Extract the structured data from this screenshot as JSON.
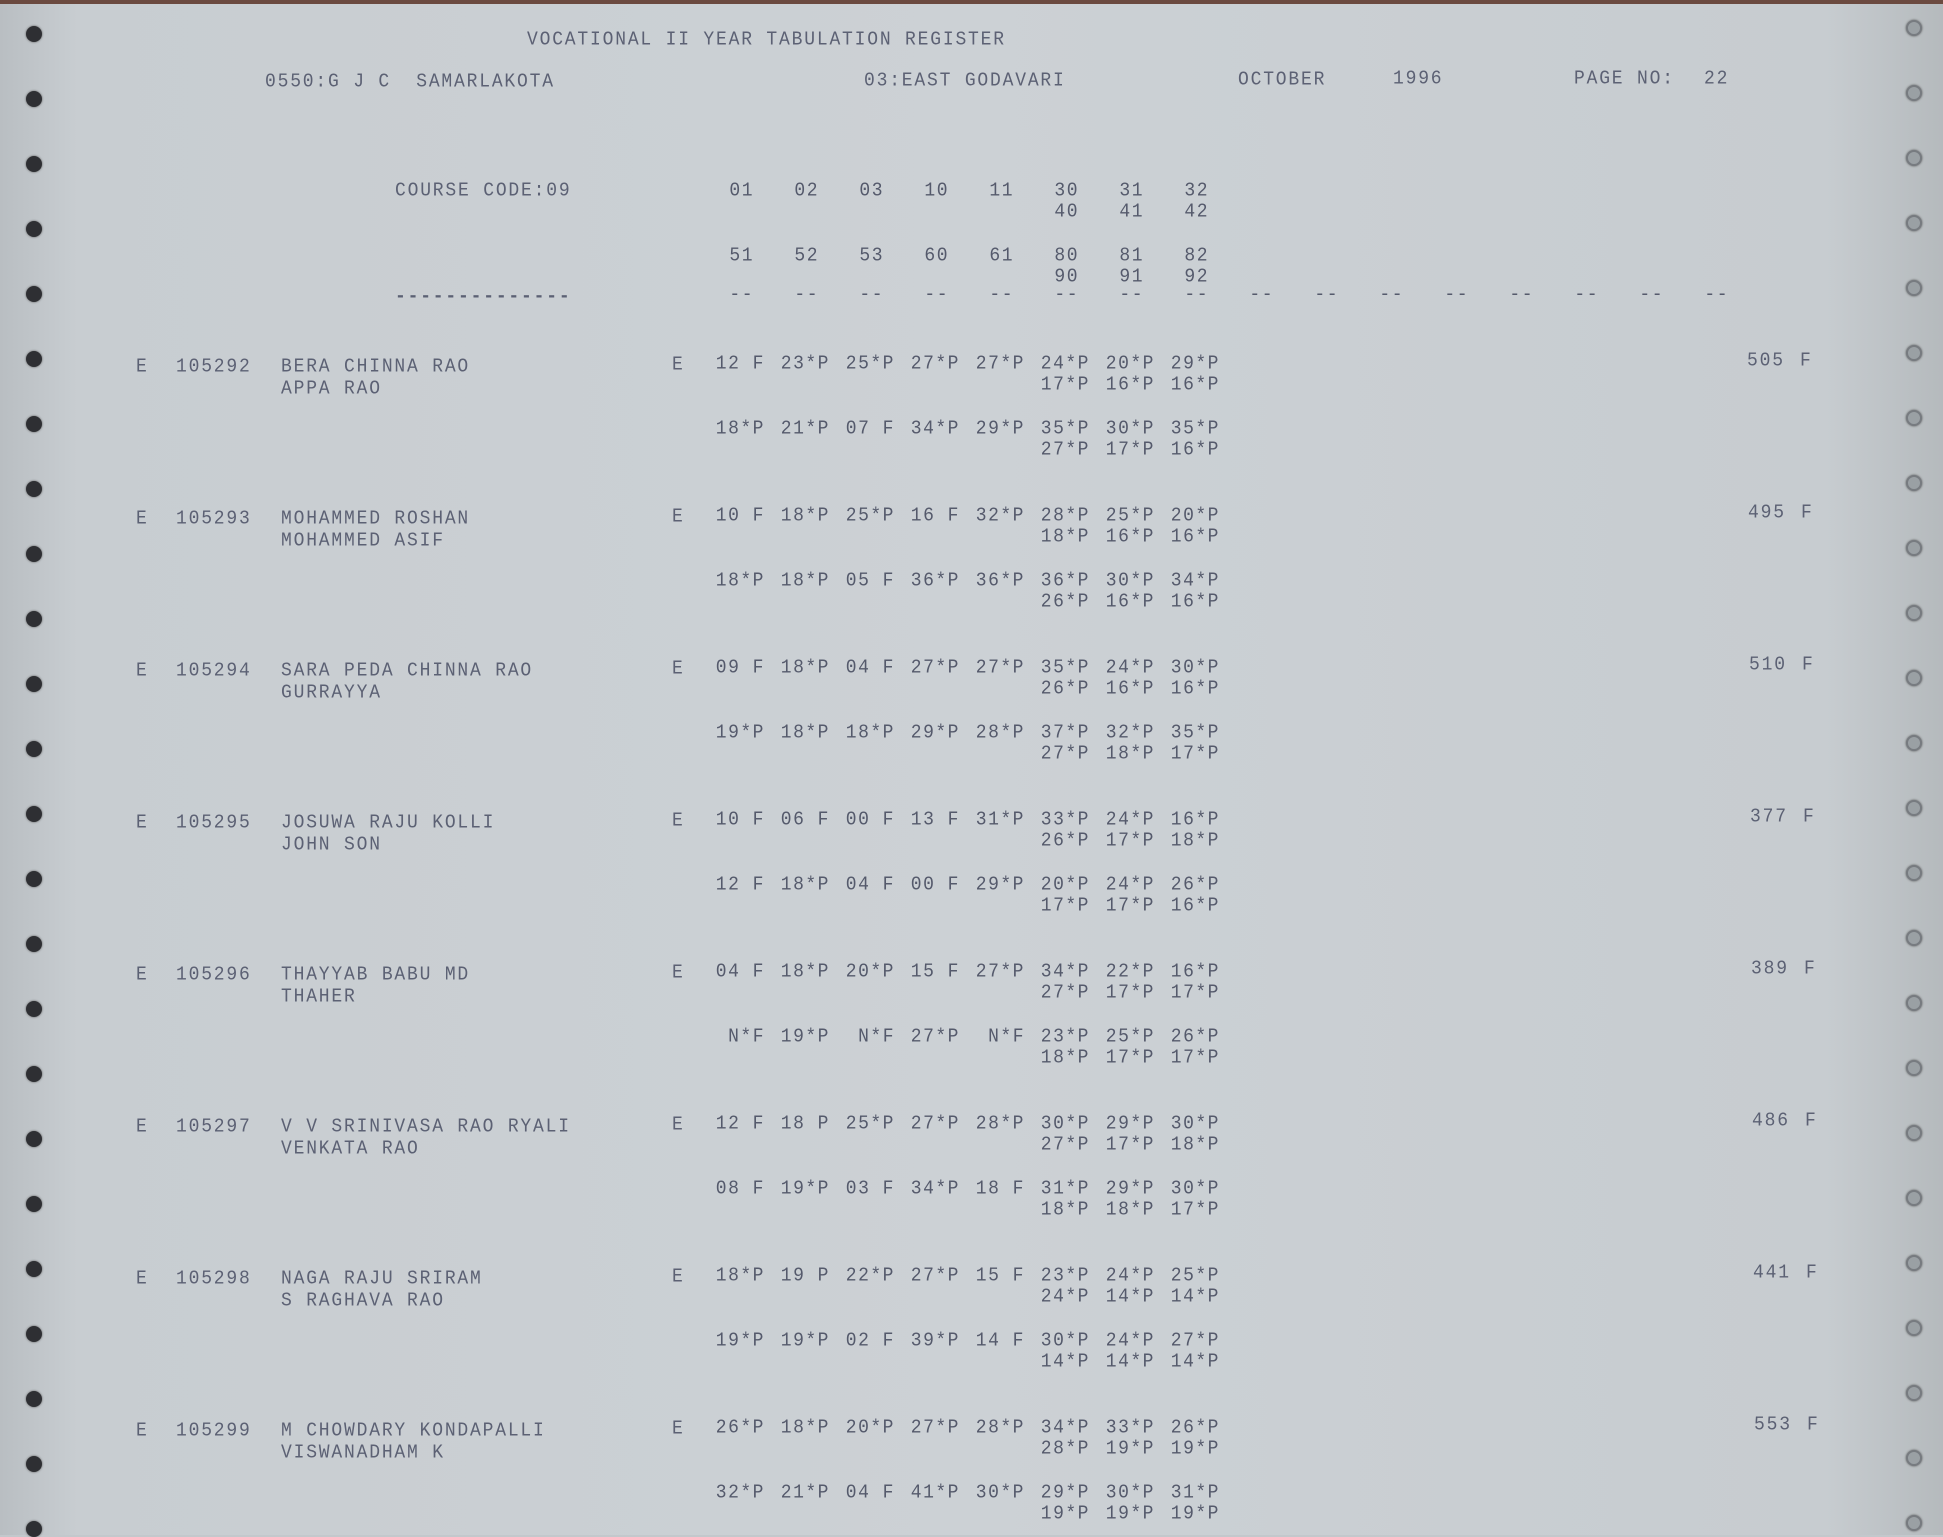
{
  "header": {
    "title": "VOCATIONAL II YEAR TABULATION REGISTER",
    "school": "0550:G J C  SAMARLAKOTA",
    "district": "03:EAST GODAVARI",
    "month": "OCTOBER",
    "year": "1996",
    "page_label": "PAGE NO:",
    "page_no": "22"
  },
  "course": {
    "label": "COURSE CODE:09",
    "codes_row1": [
      "01",
      "02",
      "03",
      "10",
      "11",
      "30",
      "31",
      "32"
    ],
    "codes_row1b": [
      "40",
      "41",
      "42"
    ],
    "codes_row2": [
      "51",
      "52",
      "53",
      "60",
      "61",
      "80",
      "81",
      "82"
    ],
    "codes_row2b": [
      "90",
      "91",
      "92"
    ],
    "underline": "--------------",
    "dash": "--",
    "dash_count": 16
  },
  "entries": [
    {
      "flag": "E",
      "roll": "105292",
      "name": "BERA CHINNA RAO",
      "father": "APPA RAO",
      "mark_flag": "E",
      "m1": [
        "12 F",
        "23*P",
        "25*P",
        "27*P",
        "27*P",
        "24*P",
        "20*P",
        "29*P"
      ],
      "m1b": [
        "17*P",
        "16*P",
        "16*P"
      ],
      "m2": [
        "18*P",
        "21*P",
        "07 F",
        "34*P",
        "29*P",
        "35*P",
        "30*P",
        "35*P"
      ],
      "m2b": [
        "27*P",
        "17*P",
        "16*P"
      ],
      "total": "505",
      "result": "F"
    },
    {
      "flag": "E",
      "roll": "105293",
      "name": "MOHAMMED ROSHAN",
      "father": "MOHAMMED ASIF",
      "mark_flag": "E",
      "m1": [
        "10 F",
        "18*P",
        "25*P",
        "16 F",
        "32*P",
        "28*P",
        "25*P",
        "20*P"
      ],
      "m1b": [
        "18*P",
        "16*P",
        "16*P"
      ],
      "m2": [
        "18*P",
        "18*P",
        "05 F",
        "36*P",
        "36*P",
        "36*P",
        "30*P",
        "34*P"
      ],
      "m2b": [
        "26*P",
        "16*P",
        "16*P"
      ],
      "total": "495",
      "result": "F"
    },
    {
      "flag": "E",
      "roll": "105294",
      "name": "SARA PEDA CHINNA RAO",
      "father": "GURRAYYA",
      "mark_flag": "E",
      "m1": [
        "09 F",
        "18*P",
        "04 F",
        "27*P",
        "27*P",
        "35*P",
        "24*P",
        "30*P"
      ],
      "m1b": [
        "26*P",
        "16*P",
        "16*P"
      ],
      "m2": [
        "19*P",
        "18*P",
        "18*P",
        "29*P",
        "28*P",
        "37*P",
        "32*P",
        "35*P"
      ],
      "m2b": [
        "27*P",
        "18*P",
        "17*P"
      ],
      "total": "510",
      "result": "F"
    },
    {
      "flag": "E",
      "roll": "105295",
      "name": "JOSUWA RAJU KOLLI",
      "father": "JOHN SON",
      "mark_flag": "E",
      "m1": [
        "10 F",
        "06 F",
        "00 F",
        "13 F",
        "31*P",
        "33*P",
        "24*P",
        "16*P"
      ],
      "m1b": [
        "26*P",
        "17*P",
        "18*P"
      ],
      "m2": [
        "12 F",
        "18*P",
        "04 F",
        "00 F",
        "29*P",
        "20*P",
        "24*P",
        "26*P"
      ],
      "m2b": [
        "17*P",
        "17*P",
        "16*P"
      ],
      "total": "377",
      "result": "F"
    },
    {
      "flag": "E",
      "roll": "105296",
      "name": "THAYYAB BABU MD",
      "father": "THAHER",
      "mark_flag": "E",
      "m1": [
        "04 F",
        "18*P",
        "20*P",
        "15 F",
        "27*P",
        "34*P",
        "22*P",
        "16*P"
      ],
      "m1b": [
        "27*P",
        "17*P",
        "17*P"
      ],
      "m2": [
        "N*F",
        "19*P",
        "N*F",
        "27*P",
        "N*F",
        "23*P",
        "25*P",
        "26*P"
      ],
      "m2b": [
        "18*P",
        "17*P",
        "17*P"
      ],
      "total": "389",
      "result": "F"
    },
    {
      "flag": "E",
      "roll": "105297",
      "name": "V V SRINIVASA RAO RYALI",
      "father": "VENKATA RAO",
      "mark_flag": "E",
      "m1": [
        "12 F",
        "18 P",
        "25*P",
        "27*P",
        "28*P",
        "30*P",
        "29*P",
        "30*P"
      ],
      "m1b": [
        "27*P",
        "17*P",
        "18*P"
      ],
      "m2": [
        "08 F",
        "19*P",
        "03 F",
        "34*P",
        "18 F",
        "31*P",
        "29*P",
        "30*P"
      ],
      "m2b": [
        "18*P",
        "18*P",
        "17*P"
      ],
      "total": "486",
      "result": "F"
    },
    {
      "flag": "E",
      "roll": "105298",
      "name": "NAGA RAJU SRIRAM",
      "father": "S RAGHAVA RAO",
      "mark_flag": "E",
      "m1": [
        "18*P",
        "19 P",
        "22*P",
        "27*P",
        "15 F",
        "23*P",
        "24*P",
        "25*P"
      ],
      "m1b": [
        "24*P",
        "14*P",
        "14*P"
      ],
      "m2": [
        "19*P",
        "19*P",
        "02 F",
        "39*P",
        "14 F",
        "30*P",
        "24*P",
        "27*P"
      ],
      "m2b": [
        "14*P",
        "14*P",
        "14*P"
      ],
      "total": "441",
      "result": "F"
    },
    {
      "flag": "E",
      "roll": "105299",
      "name": "M CHOWDARY KONDAPALLI",
      "father": "VISWANADHAM K",
      "mark_flag": "E",
      "m1": [
        "26*P",
        "18*P",
        "20*P",
        "27*P",
        "28*P",
        "34*P",
        "33*P",
        "26*P"
      ],
      "m1b": [
        "28*P",
        "19*P",
        "19*P"
      ],
      "m2": [
        "32*P",
        "21*P",
        "04 F",
        "41*P",
        "30*P",
        "29*P",
        "30*P",
        "31*P"
      ],
      "m2b": [
        "19*P",
        "19*P",
        "19*P"
      ],
      "total": "553",
      "result": "F"
    }
  ]
}
